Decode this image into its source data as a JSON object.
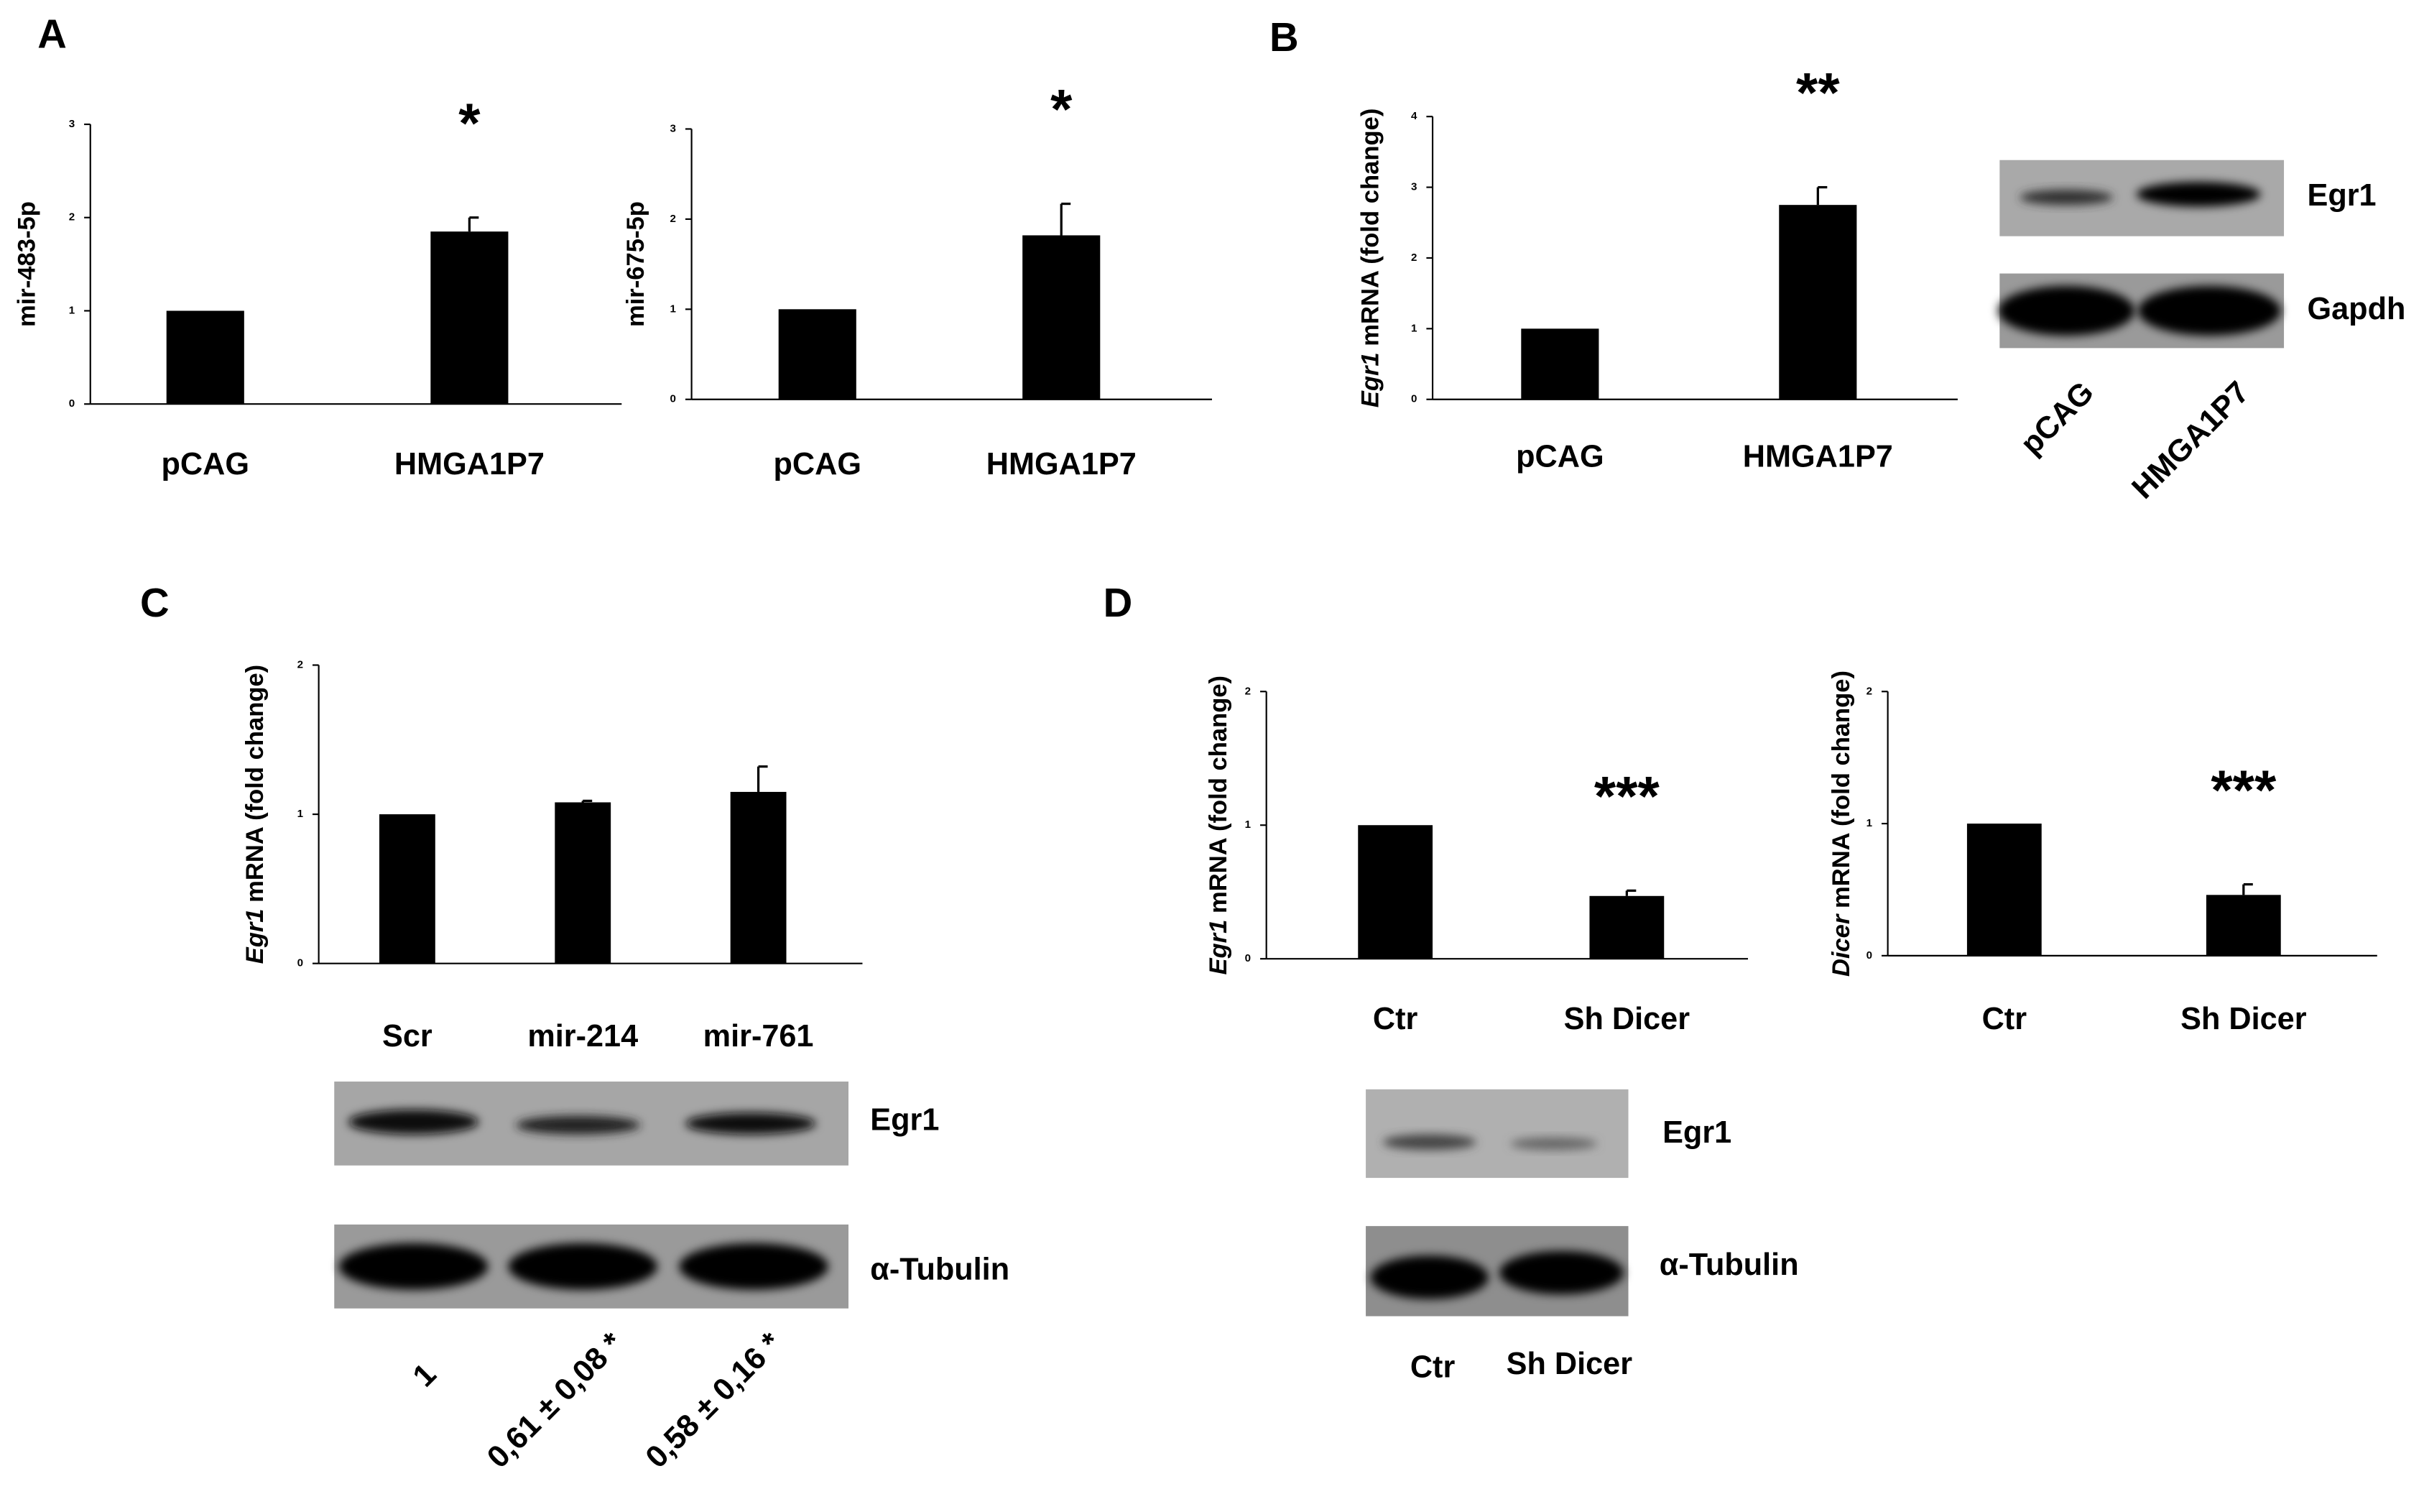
{
  "panel_labels": [
    "A",
    "B",
    "C",
    "D"
  ],
  "chart_data": [
    {
      "type": "bar",
      "ylabel": "mir-483-5p",
      "categories": [
        "pCAG",
        "HMGA1P7"
      ],
      "values": [
        1,
        1.85
      ],
      "errors": [
        null,
        0.15
      ],
      "value_annotations": [
        null,
        "*"
      ],
      "color": "#000000",
      "ylim": [
        0,
        3
      ],
      "yticks": [
        0,
        1,
        2,
        3
      ]
    },
    {
      "type": "bar",
      "ylabel": "mir-675-5p",
      "categories": [
        "pCAG",
        "HMGA1P7"
      ],
      "values": [
        1,
        1.82
      ],
      "errors": [
        null,
        0.35
      ],
      "value_annotations": [
        null,
        "*"
      ],
      "color": "#000000",
      "ylim": [
        0,
        3
      ],
      "yticks": [
        0,
        1,
        2,
        3
      ]
    },
    {
      "type": "bar",
      "ylabel_italic": "Egr1",
      "ylabel": "mRNA (fold change)",
      "categories": [
        "pCAG",
        "HMGA1P7"
      ],
      "values": [
        1,
        2.75
      ],
      "errors": [
        null,
        0.25
      ],
      "value_annotations": [
        null,
        "**"
      ],
      "color": "#000000",
      "ylim": [
        0,
        4
      ],
      "yticks": [
        0,
        1,
        2,
        3,
        4
      ]
    },
    {
      "type": "bar",
      "ylabel_italic": "Egr1",
      "ylabel": "mRNA (fold change)",
      "categories": [
        "Scr",
        "mir-214",
        "mir-761"
      ],
      "values": [
        1,
        1.08,
        1.15
      ],
      "errors": [
        null,
        0.01,
        0.17
      ],
      "color": "#000000",
      "ylim": [
        0,
        2
      ],
      "yticks": [
        0,
        1,
        2
      ]
    },
    {
      "type": "bar",
      "ylabel_italic": "Egr1",
      "ylabel": "mRNA (fold change)",
      "categories": [
        "Ctr",
        "Sh Dicer"
      ],
      "values": [
        1,
        0.47
      ],
      "errors": [
        null,
        0.04
      ],
      "value_annotations": [
        null,
        "***"
      ],
      "color": "#000000",
      "ylim": [
        0,
        2
      ],
      "yticks": [
        0,
        1,
        2
      ]
    },
    {
      "type": "bar",
      "ylabel_italic": "Dicer",
      "ylabel": "mRNA (fold change)",
      "categories": [
        "Ctr",
        "Sh Dicer"
      ],
      "values": [
        1,
        0.46
      ],
      "errors": [
        null,
        0.08
      ],
      "value_annotations": [
        null,
        "***"
      ],
      "color": "#000000",
      "ylim": [
        0,
        2
      ],
      "yticks": [
        0,
        1,
        2
      ]
    }
  ],
  "blots": [
    {
      "rows": [
        "Egr1",
        "Gapdh"
      ],
      "lanes": [
        "pCAG",
        "HMGA1P7"
      ]
    },
    {
      "rows": [
        "Egr1",
        "α-Tubulin"
      ],
      "quantification": [
        "1",
        "0,61 ± 0,08 *",
        "0,58 ± 0,16 *"
      ]
    },
    {
      "rows": [
        "Egr1",
        "α-Tubulin"
      ],
      "lanes": [
        "Ctr",
        "Sh Dicer"
      ]
    }
  ]
}
